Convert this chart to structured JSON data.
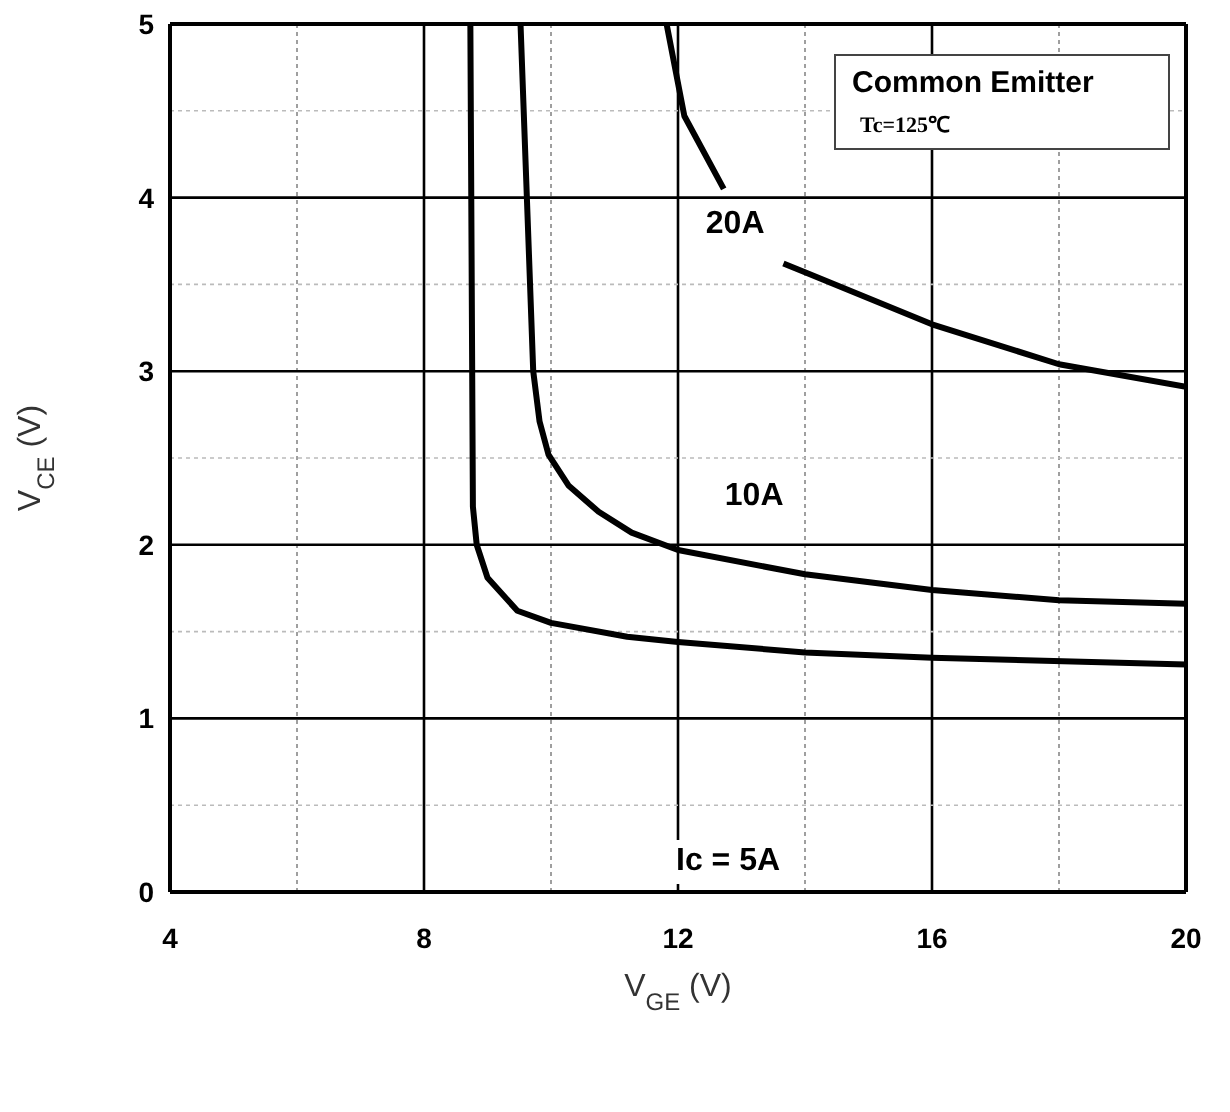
{
  "chart_data": {
    "type": "line",
    "xlabel": "V$_{GE}$ (V)",
    "ylabel": "V$_{CE}$ (V)",
    "xlim": [
      4,
      20
    ],
    "xticks": [
      4,
      {
        "value": 6,
        "label": null
      },
      8,
      {
        "value": 10,
        "label": null
      },
      12,
      {
        "value": 14,
        "label": null
      },
      16,
      {
        "value": 18,
        "label": null
      },
      20
    ],
    "ylim": [
      0,
      5
    ],
    "yticks": [
      0,
      {
        "value": 0.5,
        "label": null
      },
      1,
      {
        "value": 1.5,
        "label": null
      },
      2,
      {
        "value": 2.5,
        "label": null
      },
      3,
      {
        "value": 3.5,
        "label": null
      },
      4,
      {
        "value": 4.5,
        "label": null
      },
      5
    ],
    "grid": true,
    "marker": "none",
    "line_style": "solid",
    "series": [
      {
        "color": "#000000",
        "x": [
          8.73,
          8.77,
          8.83,
          9.0,
          9.47,
          10.0,
          11.2,
          12,
          14,
          16,
          20
        ],
        "values": [
          5,
          2.22,
          2,
          1.81,
          1.62,
          1.55,
          1.47,
          1.44,
          1.38,
          1.35,
          1.31
        ]
      },
      {
        "color": "#000000",
        "x": [
          9.52,
          9.72,
          9.82,
          9.96,
          10.28,
          10.75,
          11.27,
          12,
          14,
          16,
          18,
          20
        ],
        "values": [
          5,
          3,
          2.71,
          2.52,
          2.34,
          2.19,
          2.07,
          1.97,
          1.83,
          1.74,
          1.68,
          1.66
        ]
      },
      {
        "color": "#000000",
        "x": [
          11.82,
          12.1,
          12.72,
          null,
          13.66,
          14,
          16,
          18,
          20
        ],
        "values": [
          5,
          4.47,
          4.05,
          null,
          3.62,
          3.57,
          3.27,
          3.04,
          2.91
        ]
      }
    ],
    "annotations": [
      {
        "text": "20A",
        "x": 12.9,
        "y": 3.85
      },
      {
        "text": "10A",
        "x": 13.2,
        "y": 2.28
      },
      "Common Emitter",
      "Tc=125℃",
      "Ic = 5A"
    ]
  }
}
